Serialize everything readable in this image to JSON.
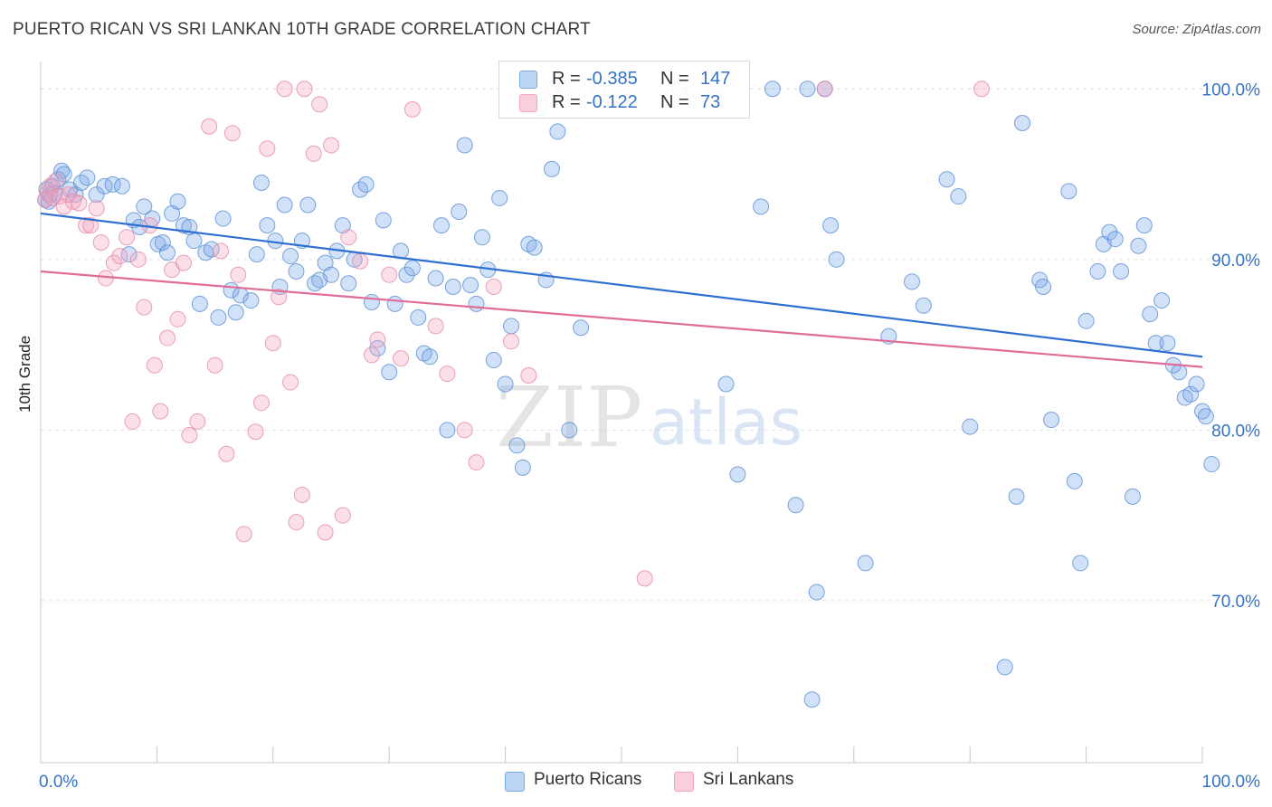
{
  "title": "PUERTO RICAN VS SRI LANKAN 10TH GRADE CORRELATION CHART",
  "source": "Source: ZipAtlas.com",
  "watermark": {
    "zip": "ZIP",
    "atlas": "atlas"
  },
  "legend": {
    "rows": [
      {
        "r_label": "R =",
        "r_value": "-0.385",
        "n_label": "N =",
        "n_value": "147"
      },
      {
        "r_label": "R =",
        "r_value": "-0.122",
        "n_label": "N =",
        "n_value": "73"
      }
    ]
  },
  "bottom_legend": [
    "Puerto Ricans",
    "Sri Lankans"
  ],
  "chart_data": {
    "type": "scatter",
    "title": "PUERTO RICAN VS SRI LANKAN 10TH GRADE CORRELATION CHART",
    "xlabel": "",
    "ylabel": "10th Grade",
    "xlim": [
      0,
      100
    ],
    "ylim": [
      60.5,
      101.5
    ],
    "x_tick_labels": [
      "0.0%",
      "100.0%"
    ],
    "y_ticks": [
      70,
      80,
      90,
      100
    ],
    "y_tick_labels": [
      "70.0%",
      "80.0%",
      "90.0%",
      "100.0%"
    ],
    "grid": true,
    "legend_position": "top-center",
    "series": [
      {
        "name": "Puerto Ricans",
        "color": "#7aaae8",
        "stroke": "#5a8fd6",
        "R": -0.385,
        "N": 147,
        "trend": {
          "x": [
            0,
            100
          ],
          "y": [
            92.7,
            84.3
          ]
        },
        "points": [
          [
            0.4,
            93.5
          ],
          [
            0.5,
            94.1
          ],
          [
            0.7,
            93.4
          ],
          [
            0.8,
            93.8
          ],
          [
            1.0,
            94.3
          ],
          [
            1.2,
            93.9
          ],
          [
            1.5,
            94.7
          ],
          [
            1.8,
            95.2
          ],
          [
            2.0,
            95.0
          ],
          [
            2.5,
            94.1
          ],
          [
            3.0,
            93.8
          ],
          [
            3.5,
            94.5
          ],
          [
            4.0,
            94.8
          ],
          [
            4.8,
            93.8
          ],
          [
            5.5,
            94.3
          ],
          [
            6.2,
            94.4
          ],
          [
            7.0,
            94.3
          ],
          [
            7.6,
            90.3
          ],
          [
            8.0,
            92.3
          ],
          [
            8.5,
            91.9
          ],
          [
            8.9,
            93.1
          ],
          [
            9.6,
            92.4
          ],
          [
            10.1,
            90.9
          ],
          [
            10.5,
            91.0
          ],
          [
            10.9,
            90.4
          ],
          [
            11.3,
            92.7
          ],
          [
            11.8,
            93.4
          ],
          [
            12.3,
            92.0
          ],
          [
            12.8,
            91.9
          ],
          [
            13.2,
            91.1
          ],
          [
            13.7,
            87.4
          ],
          [
            14.2,
            90.4
          ],
          [
            14.7,
            90.6
          ],
          [
            15.3,
            86.6
          ],
          [
            15.7,
            92.4
          ],
          [
            16.4,
            88.2
          ],
          [
            16.8,
            86.9
          ],
          [
            17.2,
            87.9
          ],
          [
            18.1,
            87.6
          ],
          [
            18.6,
            90.3
          ],
          [
            19.0,
            94.5
          ],
          [
            19.5,
            92.0
          ],
          [
            20.2,
            91.1
          ],
          [
            20.6,
            88.4
          ],
          [
            21.0,
            93.2
          ],
          [
            21.5,
            90.2
          ],
          [
            22.0,
            89.3
          ],
          [
            22.5,
            91.1
          ],
          [
            23.0,
            93.2
          ],
          [
            23.6,
            88.6
          ],
          [
            24.0,
            88.8
          ],
          [
            24.5,
            89.8
          ],
          [
            25.0,
            89.1
          ],
          [
            25.5,
            90.5
          ],
          [
            26.0,
            92.0
          ],
          [
            26.5,
            88.6
          ],
          [
            27.0,
            90.0
          ],
          [
            27.5,
            94.1
          ],
          [
            28.0,
            94.4
          ],
          [
            28.5,
            87.5
          ],
          [
            29.0,
            84.8
          ],
          [
            29.5,
            92.3
          ],
          [
            30.0,
            83.4
          ],
          [
            30.5,
            87.4
          ],
          [
            31.0,
            90.5
          ],
          [
            31.5,
            89.1
          ],
          [
            32.0,
            89.5
          ],
          [
            32.5,
            86.6
          ],
          [
            33.0,
            84.5
          ],
          [
            33.5,
            84.3
          ],
          [
            34.0,
            88.9
          ],
          [
            34.5,
            92.0
          ],
          [
            35.0,
            80.0
          ],
          [
            35.5,
            88.4
          ],
          [
            36.0,
            92.8
          ],
          [
            36.5,
            96.7
          ],
          [
            37.0,
            88.5
          ],
          [
            37.5,
            87.4
          ],
          [
            38.0,
            91.3
          ],
          [
            38.5,
            89.4
          ],
          [
            39.0,
            84.1
          ],
          [
            39.5,
            93.6
          ],
          [
            40.0,
            82.7
          ],
          [
            40.5,
            86.1
          ],
          [
            41.0,
            79.1
          ],
          [
            41.5,
            77.8
          ],
          [
            42.0,
            90.9
          ],
          [
            42.5,
            90.7
          ],
          [
            43.0,
            98.9
          ],
          [
            43.5,
            88.8
          ],
          [
            44.0,
            95.3
          ],
          [
            44.5,
            97.5
          ],
          [
            45.0,
            100.0
          ],
          [
            45.5,
            80.0
          ],
          [
            46.5,
            86.0
          ],
          [
            48.0,
            100.0
          ],
          [
            55.0,
            100.0
          ],
          [
            59.0,
            82.7
          ],
          [
            58.0,
            100.0
          ],
          [
            60.0,
            77.4
          ],
          [
            62.0,
            93.1
          ],
          [
            63.0,
            100.0
          ],
          [
            65.0,
            75.6
          ],
          [
            66.0,
            100.0
          ],
          [
            66.4,
            64.2
          ],
          [
            66.8,
            70.5
          ],
          [
            67.5,
            100.0
          ],
          [
            68.0,
            92.0
          ],
          [
            68.5,
            90.0
          ],
          [
            71.0,
            72.2
          ],
          [
            73.0,
            85.5
          ],
          [
            75.0,
            88.7
          ],
          [
            76.0,
            87.3
          ],
          [
            78.0,
            94.7
          ],
          [
            79.0,
            93.7
          ],
          [
            80.0,
            80.2
          ],
          [
            83.0,
            66.1
          ],
          [
            84.0,
            76.1
          ],
          [
            84.5,
            98.0
          ],
          [
            86.0,
            88.8
          ],
          [
            86.3,
            88.4
          ],
          [
            87.0,
            80.6
          ],
          [
            88.5,
            94.0
          ],
          [
            89.0,
            77.0
          ],
          [
            89.5,
            72.2
          ],
          [
            90.0,
            86.4
          ],
          [
            91.0,
            89.3
          ],
          [
            91.5,
            90.9
          ],
          [
            92.0,
            91.6
          ],
          [
            92.5,
            91.2
          ],
          [
            93.0,
            89.3
          ],
          [
            94.0,
            76.1
          ],
          [
            94.5,
            90.8
          ],
          [
            95.0,
            92.0
          ],
          [
            95.5,
            86.8
          ],
          [
            96.0,
            85.1
          ],
          [
            96.5,
            87.6
          ],
          [
            97.0,
            85.1
          ],
          [
            97.5,
            83.8
          ],
          [
            98.0,
            83.4
          ],
          [
            98.5,
            81.9
          ],
          [
            99.0,
            82.1
          ],
          [
            99.5,
            82.7
          ],
          [
            100.0,
            81.1
          ],
          [
            100.3,
            80.8
          ],
          [
            100.8,
            78.0
          ]
        ]
      },
      {
        "name": "Sri Lankans",
        "color": "#f4a6bf",
        "stroke": "#e589a8",
        "R": -0.122,
        "N": 73,
        "trend": {
          "x": [
            0,
            100
          ],
          "y": [
            89.3,
            83.7
          ]
        },
        "points": [
          [
            0.4,
            93.5
          ],
          [
            0.6,
            93.9
          ],
          [
            0.8,
            94.3
          ],
          [
            1.0,
            93.6
          ],
          [
            1.3,
            94.6
          ],
          [
            1.6,
            93.7
          ],
          [
            2.0,
            93.1
          ],
          [
            2.4,
            93.8
          ],
          [
            2.8,
            93.4
          ],
          [
            3.3,
            93.3
          ],
          [
            3.9,
            92.0
          ],
          [
            4.3,
            92.0
          ],
          [
            4.8,
            93.0
          ],
          [
            5.2,
            91.0
          ],
          [
            5.6,
            88.9
          ],
          [
            6.3,
            89.8
          ],
          [
            6.8,
            90.2
          ],
          [
            7.4,
            91.3
          ],
          [
            7.9,
            80.5
          ],
          [
            8.4,
            90.0
          ],
          [
            8.9,
            87.2
          ],
          [
            9.4,
            92.0
          ],
          [
            9.8,
            83.8
          ],
          [
            10.3,
            81.1
          ],
          [
            10.9,
            85.4
          ],
          [
            11.3,
            89.4
          ],
          [
            11.8,
            86.5
          ],
          [
            12.3,
            89.8
          ],
          [
            12.8,
            79.7
          ],
          [
            13.5,
            80.5
          ],
          [
            14.5,
            97.8
          ],
          [
            15.0,
            83.8
          ],
          [
            15.5,
            90.5
          ],
          [
            16.0,
            78.6
          ],
          [
            16.5,
            97.4
          ],
          [
            17.0,
            89.1
          ],
          [
            17.5,
            73.9
          ],
          [
            18.5,
            79.9
          ],
          [
            19.0,
            81.6
          ],
          [
            19.5,
            96.5
          ],
          [
            20.0,
            85.1
          ],
          [
            20.5,
            87.8
          ],
          [
            21.0,
            100.0
          ],
          [
            21.5,
            82.8
          ],
          [
            22.0,
            74.6
          ],
          [
            22.5,
            76.2
          ],
          [
            22.7,
            100.0
          ],
          [
            23.5,
            96.2
          ],
          [
            24.0,
            99.1
          ],
          [
            24.5,
            74.0
          ],
          [
            25.0,
            96.7
          ],
          [
            26.0,
            75.0
          ],
          [
            26.5,
            91.3
          ],
          [
            27.5,
            89.9
          ],
          [
            28.5,
            84.4
          ],
          [
            29.0,
            85.3
          ],
          [
            30.0,
            89.1
          ],
          [
            31.0,
            84.2
          ],
          [
            32.0,
            98.8
          ],
          [
            34.0,
            86.1
          ],
          [
            35.0,
            83.3
          ],
          [
            36.5,
            80.0
          ],
          [
            37.5,
            78.1
          ],
          [
            39.0,
            88.4
          ],
          [
            40.5,
            85.2
          ],
          [
            42.0,
            83.2
          ],
          [
            44.0,
            100.0
          ],
          [
            52.0,
            71.3
          ],
          [
            67.5,
            100.0
          ],
          [
            81.0,
            100.0
          ]
        ]
      }
    ]
  }
}
